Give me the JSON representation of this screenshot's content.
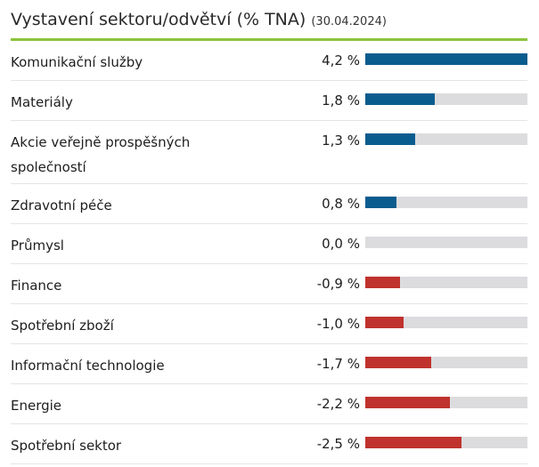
{
  "chart_data": {
    "type": "bar",
    "title": "Vystavení sektoru/odvětví (% TNA)",
    "date": "(30.04.2024)",
    "unit_suffix": " %",
    "max_abs": 4.2,
    "colors": {
      "positive": "#0b5c8e",
      "negative": "#c0322d",
      "track": "#dcdcdf",
      "accent": "#8cc43c"
    },
    "categories": [
      "Komunikační služby",
      "Materiály",
      "Akcie veřejně prospěšných společností",
      "Zdravotní péče",
      "Průmysl",
      "Finance",
      "Spotřební zboží",
      "Informační technologie",
      "Energie",
      "Spotřební sektor"
    ],
    "values": [
      4.2,
      1.8,
      1.3,
      0.8,
      0.0,
      -0.9,
      -1.0,
      -1.7,
      -2.2,
      -2.5
    ],
    "value_labels": [
      "4,2 %",
      "1,8 %",
      "1,3 %",
      "0,8 %",
      "0,0 %",
      "-0,9 %",
      "-1,0 %",
      "-1,7 %",
      "-2,2 %",
      "-2,5 %"
    ]
  }
}
